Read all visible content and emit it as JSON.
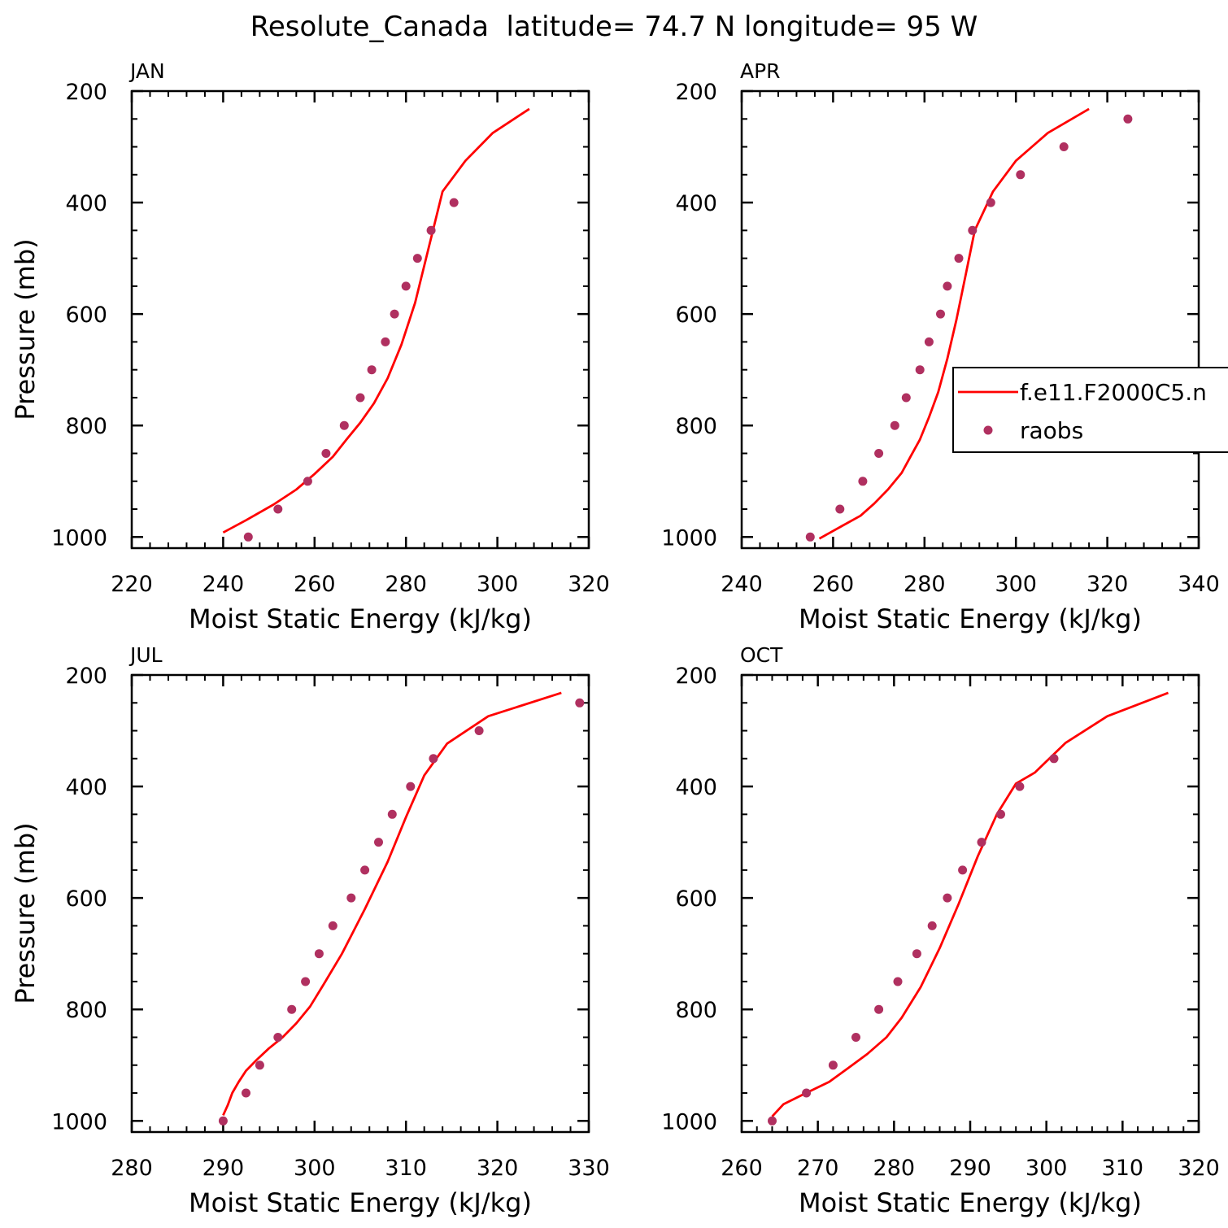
{
  "title": "Resolute_Canada  latitude= 74.7 N longitude= 95 W",
  "colors": {
    "model": "#ff0000",
    "obs": "#b03060",
    "axis": "#000000"
  },
  "legend": {
    "placement": "right of APR panel",
    "model_label": "f.e11.F2000C5.n",
    "obs_label": "raobs"
  },
  "chart_data": [
    {
      "type": "line",
      "panel": "JAN",
      "xlabel": "Moist Static Energy (kJ/kg)",
      "ylabel": "Pressure (mb)",
      "xlim": [
        220,
        320
      ],
      "ylim": [
        1020,
        200
      ],
      "xticks": [
        220,
        240,
        260,
        280,
        300,
        320
      ],
      "yticks": [
        200,
        400,
        600,
        800,
        1000
      ],
      "series": [
        {
          "name": "f.e11.F2000C5.n",
          "style": "line",
          "x": [
            240,
            245,
            251,
            256,
            260,
            264,
            267,
            270,
            273,
            276,
            279,
            282,
            285,
            288,
            293,
            299,
            307
          ],
          "y": [
            992,
            970,
            942,
            915,
            887,
            856,
            825,
            795,
            760,
            715,
            655,
            580,
            480,
            380,
            325,
            275,
            232
          ]
        },
        {
          "name": "raobs",
          "style": "scatter",
          "x": [
            245.5,
            252,
            258.5,
            262.5,
            266.5,
            270,
            272.5,
            275.5,
            277.5,
            280,
            282.5,
            285.5,
            290.5
          ],
          "y": [
            1000,
            950,
            900,
            850,
            800,
            750,
            700,
            650,
            600,
            550,
            500,
            450,
            400
          ]
        }
      ]
    },
    {
      "type": "line",
      "panel": "APR",
      "xlabel": "Moist Static Energy (kJ/kg)",
      "ylabel": "",
      "xlim": [
        240,
        340
      ],
      "ylim": [
        1020,
        200
      ],
      "xticks": [
        240,
        260,
        280,
        300,
        320,
        340
      ],
      "yticks": [
        200,
        400,
        600,
        800,
        1000
      ],
      "series": [
        {
          "name": "f.e11.F2000C5.n",
          "style": "line",
          "x": [
            257,
            262,
            266,
            269,
            272,
            275,
            277,
            279,
            281,
            283,
            285,
            287,
            289,
            291,
            295,
            300,
            307,
            316
          ],
          "y": [
            1003,
            980,
            962,
            940,
            915,
            885,
            855,
            825,
            785,
            740,
            680,
            610,
            530,
            450,
            380,
            325,
            275,
            232
          ]
        },
        {
          "name": "raobs",
          "style": "scatter",
          "x": [
            255,
            261.5,
            266.5,
            270,
            273.5,
            276,
            279,
            281,
            283.5,
            285,
            287.5,
            290.5,
            294.5,
            301,
            310.5,
            324.5
          ],
          "y": [
            1000,
            950,
            900,
            850,
            800,
            750,
            700,
            650,
            600,
            550,
            500,
            450,
            400,
            350,
            300,
            250
          ]
        }
      ]
    },
    {
      "type": "line",
      "panel": "JUL",
      "xlabel": "Moist Static Energy (kJ/kg)",
      "ylabel": "Pressure (mb)",
      "xlim": [
        280,
        330
      ],
      "ylim": [
        1020,
        200
      ],
      "xticks": [
        280,
        290,
        300,
        310,
        320,
        330
      ],
      "yticks": [
        200,
        400,
        600,
        800,
        1000
      ],
      "series": [
        {
          "name": "f.e11.F2000C5.n",
          "style": "line",
          "x": [
            290,
            290.5,
            291,
            291.7,
            292.5,
            293.7,
            295,
            296.5,
            298,
            299.5,
            301,
            303,
            305.5,
            308,
            310,
            312,
            314.5,
            319,
            327
          ],
          "y": [
            990,
            972,
            950,
            930,
            910,
            890,
            870,
            850,
            825,
            795,
            755,
            700,
            620,
            535,
            455,
            380,
            323,
            274,
            232
          ]
        },
        {
          "name": "raobs",
          "style": "scatter",
          "x": [
            290,
            292.5,
            294,
            296,
            297.5,
            299,
            300.5,
            302,
            304,
            305.5,
            307,
            308.5,
            310.5,
            313,
            318,
            329
          ],
          "y": [
            1000,
            950,
            900,
            850,
            800,
            750,
            700,
            650,
            600,
            550,
            500,
            450,
            400,
            350,
            300,
            250
          ]
        }
      ]
    },
    {
      "type": "line",
      "panel": "OCT",
      "xlabel": "Moist Static Energy (kJ/kg)",
      "ylabel": "",
      "xlim": [
        260,
        320
      ],
      "ylim": [
        1020,
        200
      ],
      "xticks": [
        260,
        270,
        280,
        290,
        300,
        310,
        320
      ],
      "yticks": [
        200,
        400,
        600,
        800,
        1000
      ],
      "series": [
        {
          "name": "f.e11.F2000C5.n",
          "style": "line",
          "x": [
            264,
            265.5,
            268,
            271.5,
            274,
            276.5,
            279,
            281,
            283.5,
            286,
            288.5,
            291,
            293.5,
            296,
            298.5,
            302.5,
            308,
            316
          ],
          "y": [
            992,
            970,
            953,
            930,
            905,
            880,
            850,
            815,
            760,
            690,
            610,
            525,
            450,
            395,
            375,
            322,
            274,
            232
          ]
        },
        {
          "name": "raobs",
          "style": "scatter",
          "x": [
            264,
            268.5,
            272,
            275,
            278,
            280.5,
            283,
            285,
            287,
            289,
            291.5,
            294,
            296.5,
            301
          ],
          "y": [
            1000,
            950,
            900,
            850,
            800,
            750,
            700,
            650,
            600,
            550,
            500,
            450,
            400,
            350
          ]
        }
      ]
    }
  ]
}
